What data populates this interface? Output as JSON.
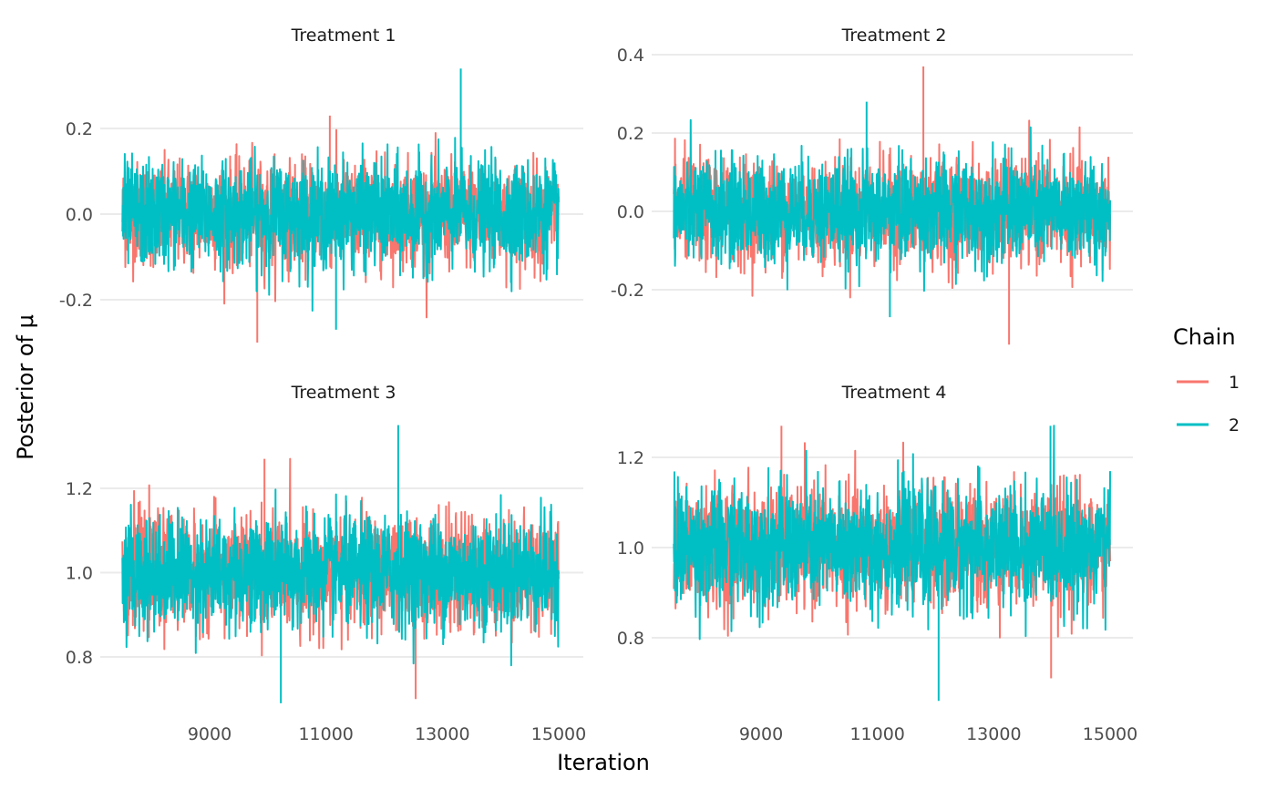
{
  "chart_data": {
    "type": "line",
    "title": "",
    "xlabel": "Iteration",
    "ylabel": "Posterior of μ",
    "legend": {
      "title": "Chain",
      "position": "right",
      "entries": [
        {
          "label": "1",
          "color": "#F8766D"
        },
        {
          "label": "2",
          "color": "#00BFC4"
        }
      ]
    },
    "x_range": [
      7501,
      15000
    ],
    "x_ticks": [
      9000,
      11000,
      13000,
      15000
    ],
    "x_tick_labels": [
      "9000",
      "11000",
      "13000",
      "15000"
    ],
    "grid": true,
    "panels": [
      {
        "title": "Treatment 1",
        "ylim": [
          -0.3,
          0.35
        ],
        "y_ticks": [
          -0.2,
          0.0,
          0.2
        ],
        "y_tick_labels": [
          "-0.2",
          "0.0",
          "0.2"
        ],
        "series": [
          {
            "name": "1",
            "center": 0.0,
            "sd": 0.06,
            "min": -0.3,
            "max": 0.23
          },
          {
            "name": "2",
            "center": 0.0,
            "sd": 0.06,
            "min": -0.27,
            "max": 0.34
          }
        ]
      },
      {
        "title": "Treatment 2",
        "ylim": [
          -0.34,
          0.37
        ],
        "y_ticks": [
          -0.2,
          0.0,
          0.2,
          0.4
        ],
        "y_tick_labels": [
          "-0.2",
          "0.0",
          "0.2",
          "0.4"
        ],
        "series": [
          {
            "name": "1",
            "center": 0.0,
            "sd": 0.065,
            "min": -0.34,
            "max": 0.37
          },
          {
            "name": "2",
            "center": 0.0,
            "sd": 0.065,
            "min": -0.27,
            "max": 0.28
          }
        ]
      },
      {
        "title": "Treatment 3",
        "ylim": [
          0.69,
          1.35
        ],
        "y_ticks": [
          0.8,
          1.0,
          1.2
        ],
        "y_tick_labels": [
          "0.8",
          "1.0",
          "1.2"
        ],
        "series": [
          {
            "name": "1",
            "center": 1.0,
            "sd": 0.065,
            "min": 0.7,
            "max": 1.27
          },
          {
            "name": "2",
            "center": 1.0,
            "sd": 0.065,
            "min": 0.69,
            "max": 1.35
          }
        ]
      },
      {
        "title": "Treatment 4",
        "ylim": [
          0.66,
          1.27
        ],
        "y_ticks": [
          0.8,
          1.0,
          1.2
        ],
        "y_tick_labels": [
          "0.8",
          "1.0",
          "1.2"
        ],
        "series": [
          {
            "name": "1",
            "center": 1.0,
            "sd": 0.065,
            "min": 0.71,
            "max": 1.27
          },
          {
            "name": "2",
            "center": 1.0,
            "sd": 0.065,
            "min": 0.66,
            "max": 1.27
          }
        ]
      }
    ]
  }
}
